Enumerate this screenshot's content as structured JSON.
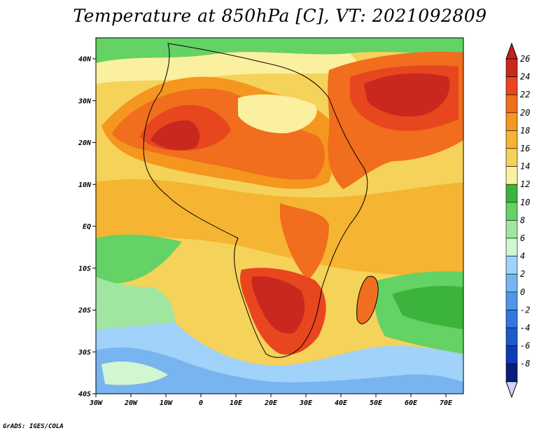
{
  "title": "Temperature at 850hPa [C], VT: 2021092809",
  "credit": "GrADS: IGES/COLA",
  "map": {
    "lon_ticks": [
      "30W",
      "20W",
      "10W",
      "0",
      "10E",
      "20E",
      "30E",
      "40E",
      "50E",
      "60E",
      "70E"
    ],
    "lat_ticks": [
      "40N",
      "30N",
      "20N",
      "10N",
      "EQ",
      "10S",
      "20S",
      "30S",
      "40S"
    ],
    "lon_range": [
      -30,
      75
    ],
    "lat_range": [
      -40,
      45
    ]
  },
  "colorbar": {
    "labels": [
      "26",
      "24",
      "22",
      "20",
      "18",
      "16",
      "14",
      "12",
      "10",
      "8",
      "6",
      "4",
      "2",
      "0",
      "-2",
      "-4",
      "-6",
      "-8"
    ],
    "colors_top_to_bottom": [
      "#c8281e",
      "#e8461e",
      "#f06e1e",
      "#f5961e",
      "#f5b432",
      "#f5d25a",
      "#faf0a0",
      "#3cb43c",
      "#64d264",
      "#a0e6a0",
      "#d2f5d2",
      "#a0d2fa",
      "#78b4f0",
      "#5096e6",
      "#3278dc",
      "#1e5ac8",
      "#0f3cb4",
      "#0a1e78"
    ],
    "top_arrow_color": "#c81e1e",
    "bottom_arrow_color": "#d2d2fa"
  }
}
